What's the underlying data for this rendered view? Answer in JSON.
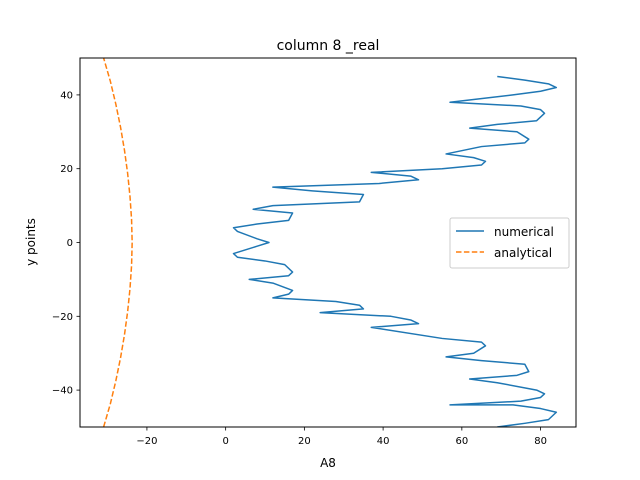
{
  "chart_data": {
    "type": "line",
    "title": "column 8 _real",
    "xlabel": "A8",
    "ylabel": "y points",
    "xlim": [
      -37,
      89
    ],
    "ylim": [
      -50,
      50
    ],
    "xticks": [
      -20,
      0,
      20,
      40,
      60,
      80
    ],
    "xtick_labels": [
      "−20",
      "0",
      "20",
      "40",
      "60",
      "80"
    ],
    "yticks": [
      -40,
      -20,
      0,
      20,
      40
    ],
    "ytick_labels": [
      "−40",
      "−20",
      "0",
      "20",
      "40"
    ],
    "grid": false,
    "legend_position": "center-right",
    "series": [
      {
        "name": "numerical",
        "color": "#1f77b4",
        "style": "solid",
        "x": [
          69,
          76,
          82,
          84,
          80,
          73,
          57,
          75,
          80,
          81,
          79,
          69,
          62,
          74,
          77,
          76,
          65,
          56,
          63,
          66,
          65,
          55,
          37,
          49,
          47,
          42,
          24,
          35,
          34,
          28,
          12,
          16,
          17,
          12,
          6,
          16,
          17,
          15,
          10,
          3,
          2,
          8,
          11,
          8,
          3,
          2,
          8,
          16,
          17,
          7,
          12,
          34,
          35,
          22,
          12,
          39,
          49,
          47,
          37,
          55,
          65,
          66,
          63,
          56,
          65,
          76,
          77,
          74,
          62,
          69,
          79,
          81,
          80,
          75,
          57,
          73,
          80,
          84,
          82,
          76,
          69
        ],
        "y": [
          -50,
          -49,
          -48,
          -46,
          -45,
          -44,
          -44,
          -43,
          -42,
          -41,
          -40,
          -38,
          -37,
          -36,
          -35,
          -33,
          -32,
          -31,
          -30,
          -28,
          -27,
          -26,
          -23,
          -22,
          -21,
          -20,
          -19,
          -18,
          -17,
          -16,
          -15,
          -14,
          -13,
          -11,
          -10,
          -9,
          -8,
          -6,
          -5,
          -4,
          -3,
          -1,
          0,
          1,
          3,
          4,
          5,
          6,
          8,
          9,
          10,
          11,
          13,
          14,
          15,
          16,
          17,
          18,
          19,
          20,
          21,
          22,
          23,
          24,
          26,
          27,
          28,
          30,
          31,
          32,
          33,
          35,
          36,
          37,
          38,
          40,
          41,
          42,
          43,
          44,
          45
        ]
      },
      {
        "name": "analytical",
        "color": "#ff7f0e",
        "style": "dashed",
        "x": [
          -31.0,
          -29.3,
          -27.9,
          -26.7,
          -25.7,
          -24.9,
          -24.3,
          -23.9,
          -23.75,
          -23.9,
          -24.3,
          -24.9,
          -25.7,
          -26.7,
          -27.9,
          -29.3,
          -31.0
        ],
        "y": [
          -50,
          -43.75,
          -37.5,
          -31.25,
          -25,
          -18.75,
          -12.5,
          -6.25,
          0,
          6.25,
          12.5,
          18.75,
          25,
          31.25,
          37.5,
          43.75,
          50
        ]
      }
    ]
  }
}
